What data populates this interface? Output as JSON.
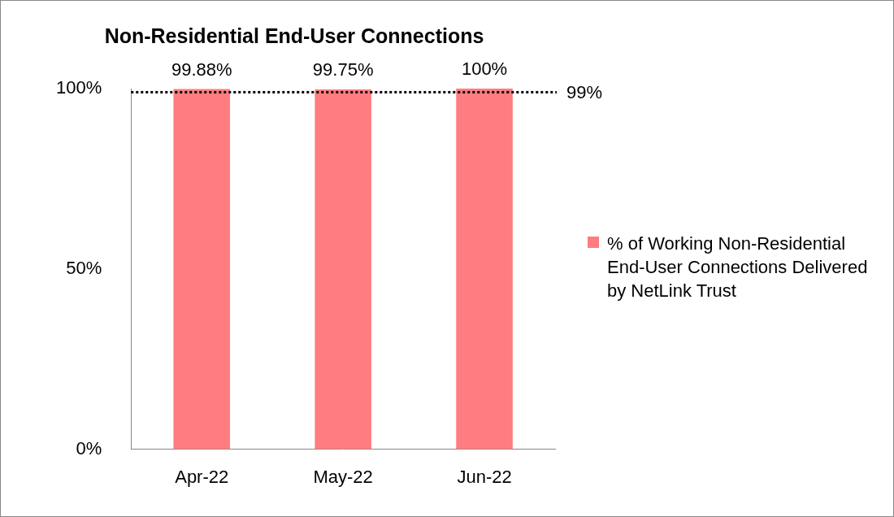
{
  "chart_data": {
    "type": "bar",
    "title": "Non-Residential End-User Connections",
    "categories": [
      "Apr-22",
      "May-22",
      "Jun-22"
    ],
    "series": [
      {
        "name": "% of Working Non-Residential End-User Connections Delivered by NetLink Trust",
        "color": "#ff7c80",
        "values": [
          99.88,
          99.75,
          100
        ],
        "value_labels": [
          "99.88%",
          "99.75%",
          "100%"
        ]
      }
    ],
    "ylim": [
      0,
      100
    ],
    "yticks": [
      {
        "value": 0,
        "label": "0%"
      },
      {
        "value": 50,
        "label": "50%"
      },
      {
        "value": 100,
        "label": "100%"
      }
    ],
    "annotations": [
      {
        "y": 99,
        "label": "99%",
        "line_style": "dotted"
      }
    ],
    "grid": false,
    "data_labels": true,
    "legend": "right"
  }
}
